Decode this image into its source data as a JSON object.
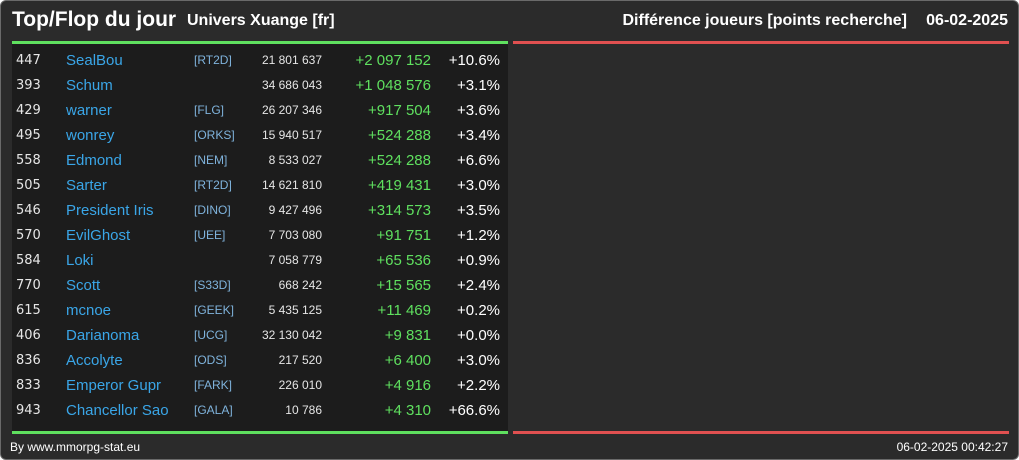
{
  "header": {
    "title": "Top/Flop du jour",
    "subtitle": "Univers Xuange [fr]",
    "right_title": "Différence joueurs [points recherche]",
    "date": "06-02-2025"
  },
  "colors": {
    "accent_positive": "#5fe05f",
    "accent_negative": "#e05050",
    "player_link": "#3aa6e8"
  },
  "rows": [
    {
      "rank": "447",
      "name": "SealBou",
      "alliance": "[RT2D]",
      "points": "21 801 637",
      "diff": "+2 097 152",
      "pct": "+10.6%"
    },
    {
      "rank": "393",
      "name": "Schum",
      "alliance": "",
      "points": "34 686 043",
      "diff": "+1 048 576",
      "pct": "+3.1%"
    },
    {
      "rank": "429",
      "name": "warner",
      "alliance": "[FLG]",
      "points": "26 207 346",
      "diff": "+917 504",
      "pct": "+3.6%"
    },
    {
      "rank": "495",
      "name": "wonrey",
      "alliance": "[ORKS]",
      "points": "15 940 517",
      "diff": "+524 288",
      "pct": "+3.4%"
    },
    {
      "rank": "558",
      "name": "Edmond",
      "alliance": "[NEM]",
      "points": "8 533 027",
      "diff": "+524 288",
      "pct": "+6.6%"
    },
    {
      "rank": "505",
      "name": "Sarter",
      "alliance": "[RT2D]",
      "points": "14 621 810",
      "diff": "+419 431",
      "pct": "+3.0%"
    },
    {
      "rank": "546",
      "name": "President Iris",
      "alliance": "[DINO]",
      "points": "9 427 496",
      "diff": "+314 573",
      "pct": "+3.5%"
    },
    {
      "rank": "570",
      "name": "EvilGhost",
      "alliance": "[UEE]",
      "points": "7 703 080",
      "diff": "+91 751",
      "pct": "+1.2%"
    },
    {
      "rank": "584",
      "name": "Loki",
      "alliance": "",
      "points": "7 058 779",
      "diff": "+65 536",
      "pct": "+0.9%"
    },
    {
      "rank": "770",
      "name": "Scott",
      "alliance": "[S33D]",
      "points": "668 242",
      "diff": "+15 565",
      "pct": "+2.4%"
    },
    {
      "rank": "615",
      "name": "mcnoe",
      "alliance": "[GEEK]",
      "points": "5 435 125",
      "diff": "+11 469",
      "pct": "+0.2%"
    },
    {
      "rank": "406",
      "name": "Darianoma",
      "alliance": "[UCG]",
      "points": "32 130 042",
      "diff": "+9 831",
      "pct": "+0.0%"
    },
    {
      "rank": "836",
      "name": "Accolyte",
      "alliance": "[ODS]",
      "points": "217 520",
      "diff": "+6 400",
      "pct": "+3.0%"
    },
    {
      "rank": "833",
      "name": "Emperor Gupr",
      "alliance": "[FARK]",
      "points": "226 010",
      "diff": "+4 916",
      "pct": "+2.2%"
    },
    {
      "rank": "943",
      "name": "Chancellor Sao",
      "alliance": "[GALA]",
      "points": "10 786",
      "diff": "+4 310",
      "pct": "+66.6%"
    }
  ],
  "footer": {
    "credit": "By www.mmorpg-stat.eu",
    "timestamp": "06-02-2025 00:42:27"
  }
}
